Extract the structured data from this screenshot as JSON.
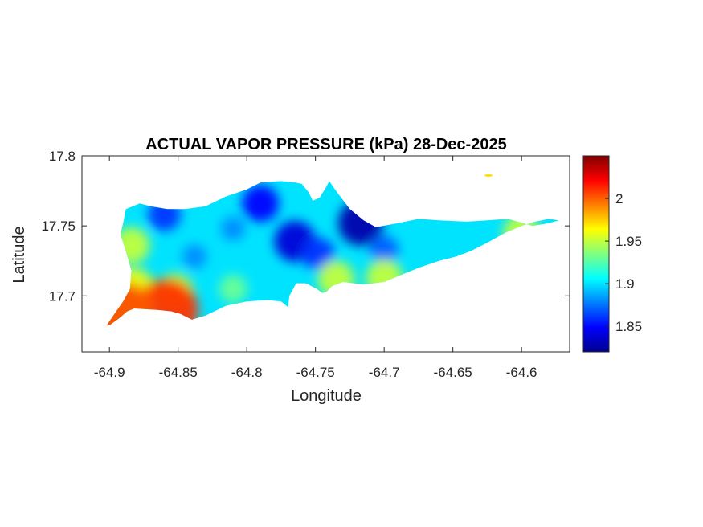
{
  "title": "ACTUAL VAPOR PRESSURE (kPa) 28-Dec-2025",
  "xlabel": "Longitude",
  "ylabel": "Latitude",
  "x_ticks": [
    {
      "value": -64.9,
      "label": "-64.9"
    },
    {
      "value": -64.85,
      "label": "-64.85"
    },
    {
      "value": -64.8,
      "label": "-64.8"
    },
    {
      "value": -64.75,
      "label": "-64.75"
    },
    {
      "value": -64.7,
      "label": "-64.7"
    },
    {
      "value": -64.65,
      "label": "-64.65"
    },
    {
      "value": -64.6,
      "label": "-64.6"
    }
  ],
  "y_ticks": [
    {
      "value": 17.7,
      "label": "17.7"
    },
    {
      "value": 17.75,
      "label": "17.75"
    },
    {
      "value": 17.8,
      "label": "17.8"
    }
  ],
  "colorbar_ticks": [
    {
      "value": 1.85,
      "label": "1.85"
    },
    {
      "value": 1.9,
      "label": "1.9"
    },
    {
      "value": 1.95,
      "label": "1.95"
    },
    {
      "value": 2.0,
      "label": "2"
    }
  ],
  "colors": {
    "colormap": "jet",
    "axis": "#262626",
    "background": "#ffffff"
  },
  "chart_data": {
    "type": "heatmap",
    "title": "ACTUAL VAPOR PRESSURE (kPa) 28-Dec-2025",
    "xlabel": "Longitude",
    "ylabel": "Latitude",
    "xlim": [
      -64.92,
      -64.565
    ],
    "ylim": [
      17.66,
      17.8
    ],
    "clim": [
      1.82,
      2.05
    ],
    "colormap": "jet",
    "grid": false,
    "background_value": 1.9,
    "island_outline": [
      [
        -64.9,
        17.679
      ],
      [
        -64.893,
        17.684
      ],
      [
        -64.887,
        17.689
      ],
      [
        -64.882,
        17.691
      ],
      [
        -64.865,
        17.69
      ],
      [
        -64.855,
        17.689
      ],
      [
        -64.848,
        17.687
      ],
      [
        -64.84,
        17.683
      ],
      [
        -64.83,
        17.686
      ],
      [
        -64.815,
        17.693
      ],
      [
        -64.8,
        17.696
      ],
      [
        -64.785,
        17.697
      ],
      [
        -64.775,
        17.696
      ],
      [
        -64.77,
        17.692
      ],
      [
        -64.769,
        17.7
      ],
      [
        -64.764,
        17.709
      ],
      [
        -64.757,
        17.709
      ],
      [
        -64.749,
        17.705
      ],
      [
        -64.745,
        17.702
      ],
      [
        -64.742,
        17.703
      ],
      [
        -64.738,
        17.707
      ],
      [
        -64.73,
        17.71
      ],
      [
        -64.715,
        17.708
      ],
      [
        -64.7,
        17.71
      ],
      [
        -64.69,
        17.714
      ],
      [
        -64.675,
        17.72
      ],
      [
        -64.66,
        17.725
      ],
      [
        -64.648,
        17.728
      ],
      [
        -64.637,
        17.732
      ],
      [
        -64.625,
        17.738
      ],
      [
        -64.612,
        17.745
      ],
      [
        -64.6,
        17.75
      ],
      [
        -64.59,
        17.753
      ],
      [
        -64.58,
        17.755
      ],
      [
        -64.573,
        17.754
      ],
      [
        -64.58,
        17.752
      ],
      [
        -64.592,
        17.75
      ],
      [
        -64.61,
        17.755
      ],
      [
        -64.625,
        17.754
      ],
      [
        -64.64,
        17.753
      ],
      [
        -64.66,
        17.754
      ],
      [
        -64.675,
        17.755
      ],
      [
        -64.69,
        17.752
      ],
      [
        -64.706,
        17.749
      ],
      [
        -64.715,
        17.754
      ],
      [
        -64.725,
        17.762
      ],
      [
        -64.735,
        17.775
      ],
      [
        -64.74,
        17.782
      ],
      [
        -64.742,
        17.778
      ],
      [
        -64.747,
        17.77
      ],
      [
        -64.752,
        17.768
      ],
      [
        -64.755,
        17.774
      ],
      [
        -64.76,
        17.78
      ],
      [
        -64.765,
        17.781
      ],
      [
        -64.775,
        17.782
      ],
      [
        -64.79,
        17.781
      ],
      [
        -64.8,
        17.776
      ],
      [
        -64.815,
        17.771
      ],
      [
        -64.83,
        17.764
      ],
      [
        -64.845,
        17.762
      ],
      [
        -64.858,
        17.762
      ],
      [
        -64.87,
        17.764
      ],
      [
        -64.878,
        17.766
      ],
      [
        -64.888,
        17.762
      ],
      [
        -64.89,
        17.752
      ],
      [
        -64.892,
        17.744
      ],
      [
        -64.888,
        17.732
      ],
      [
        -64.884,
        17.718
      ],
      [
        -64.885,
        17.705
      ],
      [
        -64.89,
        17.696
      ],
      [
        -64.895,
        17.689
      ],
      [
        -64.902,
        17.679
      ]
    ],
    "islets": [
      {
        "x": -64.624,
        "y": 17.786,
        "value": 1.97
      }
    ],
    "field_anomalies": [
      {
        "x": -64.86,
        "y": 17.758,
        "value": 1.86
      },
      {
        "x": -64.838,
        "y": 17.728,
        "value": 1.88
      },
      {
        "x": -64.79,
        "y": 17.766,
        "value": 1.85
      },
      {
        "x": -64.81,
        "y": 17.748,
        "value": 1.88
      },
      {
        "x": -64.765,
        "y": 17.739,
        "value": 1.84
      },
      {
        "x": -64.748,
        "y": 17.73,
        "value": 1.86
      },
      {
        "x": -64.717,
        "y": 17.752,
        "value": 1.83
      },
      {
        "x": -64.7,
        "y": 17.733,
        "value": 1.87
      },
      {
        "x": -64.655,
        "y": 17.74,
        "value": 1.9
      },
      {
        "x": -64.882,
        "y": 17.705,
        "value": 1.96
      },
      {
        "x": -64.884,
        "y": 17.736,
        "value": 1.95
      },
      {
        "x": -64.852,
        "y": 17.703,
        "value": 1.95
      },
      {
        "x": -64.81,
        "y": 17.705,
        "value": 1.93
      },
      {
        "x": -64.735,
        "y": 17.712,
        "value": 1.95
      },
      {
        "x": -64.7,
        "y": 17.713,
        "value": 1.95
      },
      {
        "x": -64.6,
        "y": 17.745,
        "value": 1.95
      },
      {
        "x": -64.858,
        "y": 17.69,
        "value": 2.01
      },
      {
        "x": -64.898,
        "y": 17.681,
        "value": 2.05
      },
      {
        "x": -64.889,
        "y": 17.689,
        "value": 2.0
      }
    ]
  }
}
